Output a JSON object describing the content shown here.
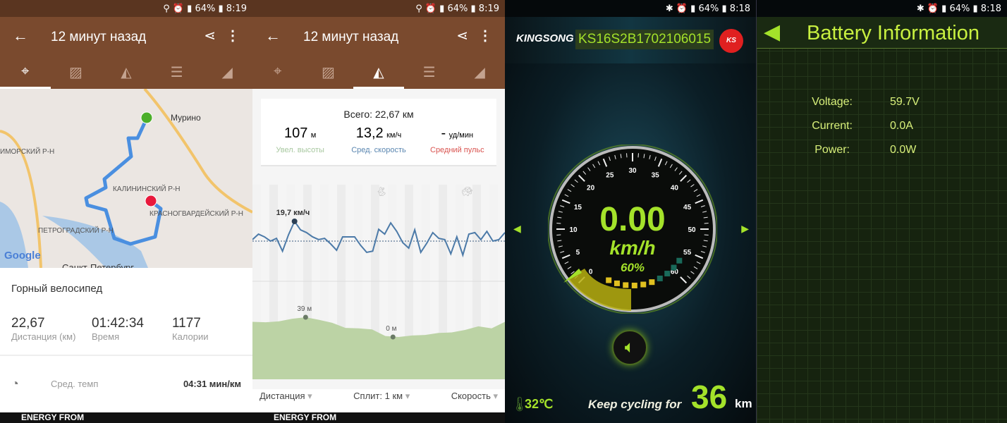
{
  "status_bars": [
    {
      "battery": "64%",
      "time": "8:19"
    },
    {
      "battery": "64%",
      "time": "8:19"
    },
    {
      "battery": "64%",
      "time": "8:18"
    },
    {
      "battery": "64%",
      "time": "8:18"
    }
  ],
  "app": {
    "title": "12 минут назад",
    "tabs": [
      "map-icon",
      "photo-icon",
      "chart-icon",
      "splits-icon",
      "elevation-icon"
    ]
  },
  "map": {
    "labels": [
      "Мурино",
      "ИМОРСКИЙ Р-Н",
      "КАЛИНИНСКИЙ Р-Н",
      "КРАСНОГВАРДЕЙСКИЙ Р-Н",
      "ПЕТРОГРАДСКИЙ Р-Н",
      "Санкт-Петербург"
    ],
    "logo": "Google",
    "start_color": "#4caf2a",
    "end_color": "#e8193c",
    "route_color": "#4a8fe0"
  },
  "summary": {
    "activity": "Горный велосипед",
    "stats": [
      {
        "value": "22,67",
        "label": "Дистанция (км)"
      },
      {
        "value": "01:42:34",
        "label": "Время"
      },
      {
        "value": "1177",
        "label": "Калории"
      }
    ],
    "pace_label": "Сред. темп",
    "pace_value": "04:31 мин/км"
  },
  "ad": {
    "text": "ENERGY FROM"
  },
  "chart_panel": {
    "total": "Всего: 22,67 км",
    "stats": [
      {
        "value": "107",
        "unit": "м",
        "label": "Увел. высоты",
        "color": "#a8c8a0"
      },
      {
        "value": "13,2",
        "unit": "км/ч",
        "label": "Сред. скорость",
        "color": "#5a86b0"
      },
      {
        "value": "-",
        "unit": "уд/мин",
        "label": "Средний пульс",
        "color": "#d9534f"
      }
    ],
    "filters": [
      "Дистанция",
      "Сплит: 1 км",
      "Скорость"
    ]
  },
  "chart_data": [
    {
      "type": "line",
      "name": "speed",
      "unit": "км/ч",
      "average": 13.2,
      "peak_label": "19,7 км/ч",
      "values": [
        13.7,
        15.5,
        14.6,
        13.2,
        14.1,
        9.9,
        15.3,
        19.7,
        16.9,
        16.0,
        14.6,
        13.7,
        14.1,
        12.3,
        10.2,
        14.6,
        14.6,
        14.6,
        11.8,
        9.5,
        9.9,
        17.1,
        15.5,
        19.2,
        16.4,
        12.7,
        10.9,
        16.9,
        9.5,
        12.5,
        16.0,
        14.1,
        13.7,
        9.0,
        14.6,
        8.6,
        15.5,
        16.0,
        13.7,
        16.4,
        13.2,
        13.7,
        16.0
      ]
    },
    {
      "type": "area",
      "name": "elevation",
      "unit": "м",
      "max_label": "39 м",
      "min_label": "0 м",
      "values": [
        30,
        29,
        31,
        36,
        39,
        34,
        28,
        18,
        17,
        15,
        2,
        0,
        3,
        4,
        8,
        9,
        14,
        21,
        17,
        30
      ]
    }
  ],
  "kingsong": {
    "brand": "KINGSONG",
    "device_id": "KS16S2B1702106015",
    "speed": "0.00",
    "unit": "km/h",
    "battery_percent": "60%",
    "battery_level": 60,
    "gauge_ticks": [
      "0",
      "5",
      "10",
      "15",
      "20",
      "25",
      "30",
      "35",
      "40",
      "45",
      "50",
      "55",
      "60"
    ],
    "temperature": "32℃",
    "range_text": "Keep cycling for",
    "range_value": "36",
    "range_unit": "km",
    "accent": "#a4e22a"
  },
  "battery": {
    "title": "Battery Information",
    "rows": [
      {
        "label": "Voltage:",
        "value": "59.7V"
      },
      {
        "label": "Current:",
        "value": "0.0A"
      },
      {
        "label": "Power:",
        "value": "0.0W"
      }
    ]
  }
}
